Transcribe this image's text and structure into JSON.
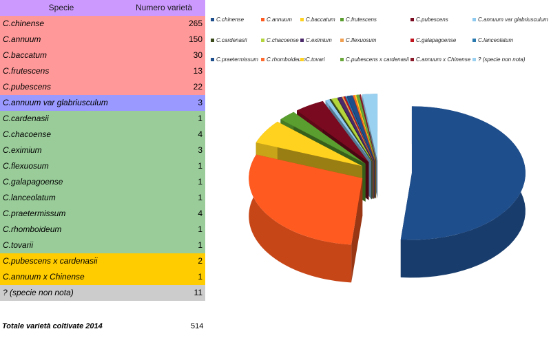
{
  "table": {
    "header": {
      "name": "Specie",
      "count": "Numero varietà",
      "bg": "#cc99ff"
    },
    "rows": [
      {
        "name": "C.chinense",
        "count": 265,
        "bg": "#ff9999"
      },
      {
        "name": "C.annuum",
        "count": 150,
        "bg": "#ff9999"
      },
      {
        "name": "C.baccatum",
        "count": 30,
        "bg": "#ff9999"
      },
      {
        "name": "C.frutescens",
        "count": 13,
        "bg": "#ff9999"
      },
      {
        "name": "C.pubescens",
        "count": 22,
        "bg": "#ff9999"
      },
      {
        "name": "C.annuum var glabriusculum",
        "count": 3,
        "bg": "#9999ff"
      },
      {
        "name": "C.cardenasii",
        "count": 1,
        "bg": "#99cc99"
      },
      {
        "name": "C.chacoense",
        "count": 4,
        "bg": "#99cc99"
      },
      {
        "name": "C.eximium",
        "count": 3,
        "bg": "#99cc99"
      },
      {
        "name": "C.flexuosum",
        "count": 1,
        "bg": "#99cc99"
      },
      {
        "name": "C.galapagoense",
        "count": 1,
        "bg": "#99cc99"
      },
      {
        "name": "C.lanceolatum",
        "count": 1,
        "bg": "#99cc99"
      },
      {
        "name": "C.praetermissum",
        "count": 4,
        "bg": "#99cc99"
      },
      {
        "name": "C.rhomboideum",
        "count": 1,
        "bg": "#99cc99"
      },
      {
        "name": "C.tovarii",
        "count": 1,
        "bg": "#99cc99"
      },
      {
        "name": "C.pubescens x cardenasii",
        "count": 2,
        "bg": "#ffcc00"
      },
      {
        "name": "C.annuum x Chinense",
        "count": 1,
        "bg": "#ffcc00"
      },
      {
        "name": "? (specie non nota)",
        "count": 11,
        "bg": "#cccccc"
      }
    ]
  },
  "total": {
    "label": "Totale varietà coltivate 2014",
    "value": 514
  },
  "chart_data": {
    "type": "pie",
    "style": "3d-exploded",
    "legend_position": "top",
    "series": [
      {
        "name": "C.chinense",
        "value": 265,
        "color": "#1f4e8c"
      },
      {
        "name": "C.annuum",
        "value": 150,
        "color": "#ff5a1f"
      },
      {
        "name": "C.baccatum",
        "value": 30,
        "color": "#ffd21f"
      },
      {
        "name": "C.frutescens",
        "value": 13,
        "color": "#5a9e2f"
      },
      {
        "name": "C.pubescens",
        "value": 22,
        "color": "#7a0a1f"
      },
      {
        "name": "C.annuum var glabriusculum",
        "value": 3,
        "color": "#8ec9f0"
      },
      {
        "name": "C.cardenasii",
        "value": 1,
        "color": "#3a4a1a"
      },
      {
        "name": "C.chacoense",
        "value": 4,
        "color": "#b5d53c"
      },
      {
        "name": "C.eximium",
        "value": 3,
        "color": "#4a2a6a"
      },
      {
        "name": "C.flexuosum",
        "value": 1,
        "color": "#f0a050"
      },
      {
        "name": "C.galapagoense",
        "value": 1,
        "color": "#c0141e"
      },
      {
        "name": "C.lanceolatum",
        "value": 1,
        "color": "#2a7ab0"
      },
      {
        "name": "C.praetermissum",
        "value": 4,
        "color": "#1f4e8c"
      },
      {
        "name": "C.rhomboideum",
        "value": 1,
        "color": "#ff6a2f"
      },
      {
        "name": "C.tovari",
        "value": 1,
        "color": "#ffd21f"
      },
      {
        "name": "C.pubescens x cardenasii",
        "value": 2,
        "color": "#6aa83a"
      },
      {
        "name": "C.annuum x Chinense",
        "value": 1,
        "color": "#8a1a2a"
      },
      {
        "name": "? (specie non nota)",
        "value": 11,
        "color": "#9ad0f0"
      }
    ]
  }
}
